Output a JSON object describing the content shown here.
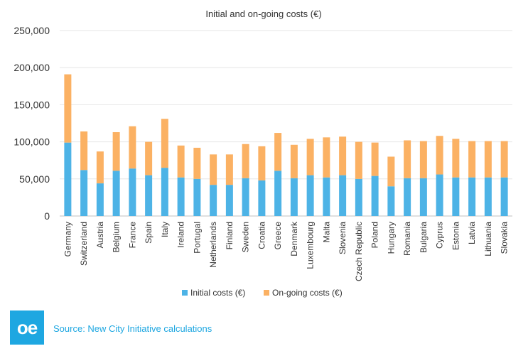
{
  "chart_data": {
    "type": "bar",
    "stacked": true,
    "title": "Initial and on-going costs (€)",
    "categories": [
      "Germany",
      "Switzerland",
      "Austria",
      "Belgium",
      "France",
      "Spain",
      "Italy",
      "Ireland",
      "Portugal",
      "Netherlands",
      "Finland",
      "Sweden",
      "Croatia",
      "Greece",
      "Denmark",
      "Luxembourg",
      "Malta",
      "Slovenia",
      "Czech Republic",
      "Poland",
      "Hungary",
      "Romania",
      "Bulgaria",
      "Cyprus",
      "Estonia",
      "Latvia",
      "Lithuania",
      "Slovakia"
    ],
    "series": [
      {
        "name": "Initial costs (€)",
        "color": "#4db3e6",
        "values": [
          99000,
          62000,
          44000,
          61000,
          64000,
          55000,
          65000,
          52000,
          50000,
          42000,
          42000,
          51000,
          48000,
          61000,
          51000,
          55000,
          52000,
          55000,
          50000,
          54000,
          40000,
          51000,
          51000,
          56000,
          52000,
          52000,
          52000,
          52000
        ]
      },
      {
        "name": "On-going costs (€)",
        "color": "#fbb163",
        "values": [
          92000,
          52000,
          43000,
          52000,
          57000,
          45000,
          66000,
          43000,
          42000,
          41000,
          41000,
          46000,
          46000,
          51000,
          45000,
          49000,
          54000,
          52000,
          50000,
          45000,
          40000,
          51000,
          50000,
          52000,
          52000,
          49000,
          49000,
          49000
        ]
      }
    ],
    "yticks": [
      "0",
      "50,000",
      "100,000",
      "150,000",
      "200,000",
      "250,000"
    ],
    "ylim": [
      0,
      250000
    ],
    "grid": true,
    "legend": "bottom"
  },
  "footer": {
    "logo_text": "oe",
    "source": "Source: New City Initiative calculations"
  }
}
